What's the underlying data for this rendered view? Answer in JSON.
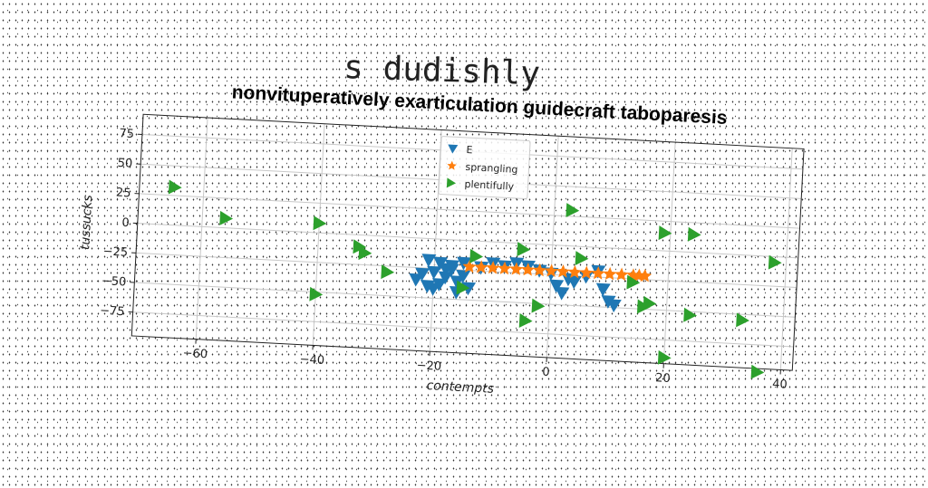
{
  "figure_title": "s dudishly",
  "chart_data": {
    "type": "scatter",
    "title": "nonvituperatively exarticulation guidecraft taboparesis",
    "xlabel": "contempts",
    "ylabel": "tussucks",
    "xlim": [
      -71,
      42
    ],
    "ylim": [
      -95,
      92
    ],
    "xticks": [
      -60,
      -40,
      -20,
      0,
      20,
      40
    ],
    "yticks": [
      -75,
      -50,
      -25,
      0,
      25,
      50,
      75
    ],
    "grid": true,
    "legend_position": "upper center",
    "series": [
      {
        "name": "E",
        "marker": "triangle-down",
        "color": "#1f77b4",
        "x": [
          -23,
          -22,
          -21,
          -20,
          -19,
          -18,
          -17,
          -16,
          -15,
          -14,
          -12,
          -10,
          -8,
          -6,
          -4,
          -2,
          0,
          2,
          4,
          6,
          8,
          9,
          10,
          11,
          -21,
          -19,
          -17,
          -15,
          -20,
          -16,
          -18,
          -12,
          3,
          1
        ],
        "y": [
          -35,
          -30,
          -40,
          -28,
          -38,
          -32,
          -25,
          -35,
          -30,
          -40,
          -22,
          -18,
          -20,
          -17,
          -19,
          -22,
          -24,
          -40,
          -30,
          -25,
          -20,
          -35,
          -45,
          -48,
          -18,
          -20,
          -22,
          -19,
          -42,
          -44,
          -25,
          -22,
          -28,
          -34
        ]
      },
      {
        "name": "sprangling",
        "marker": "star",
        "color": "#ff7f0e",
        "x": [
          -14,
          -12,
          -10,
          -8,
          -6,
          -4,
          -2,
          0,
          2,
          4,
          6,
          8,
          10,
          12,
          14,
          15,
          16
        ],
        "y": [
          -22,
          -22,
          -22,
          -22,
          -22,
          -22,
          -22,
          -22,
          -22,
          -22,
          -22,
          -22,
          -22,
          -22,
          -22,
          -22,
          -22
        ]
      },
      {
        "name": "plentifully",
        "marker": "triangle-right",
        "color": "#2ca02c",
        "x": [
          -65,
          -56,
          -40,
          -33,
          -32,
          -28,
          -40,
          -13,
          -5,
          -15,
          -4,
          -2,
          5,
          3,
          14,
          16,
          17,
          19,
          24,
          24,
          33,
          38,
          20,
          36
        ],
        "y": [
          32,
          8,
          8,
          -10,
          -15,
          -30,
          -52,
          -13,
          -5,
          -40,
          -65,
          -52,
          -10,
          30,
          -28,
          -48,
          -45,
          15,
          -53,
          15,
          -55,
          -5,
          -90,
          -98
        ]
      }
    ]
  }
}
